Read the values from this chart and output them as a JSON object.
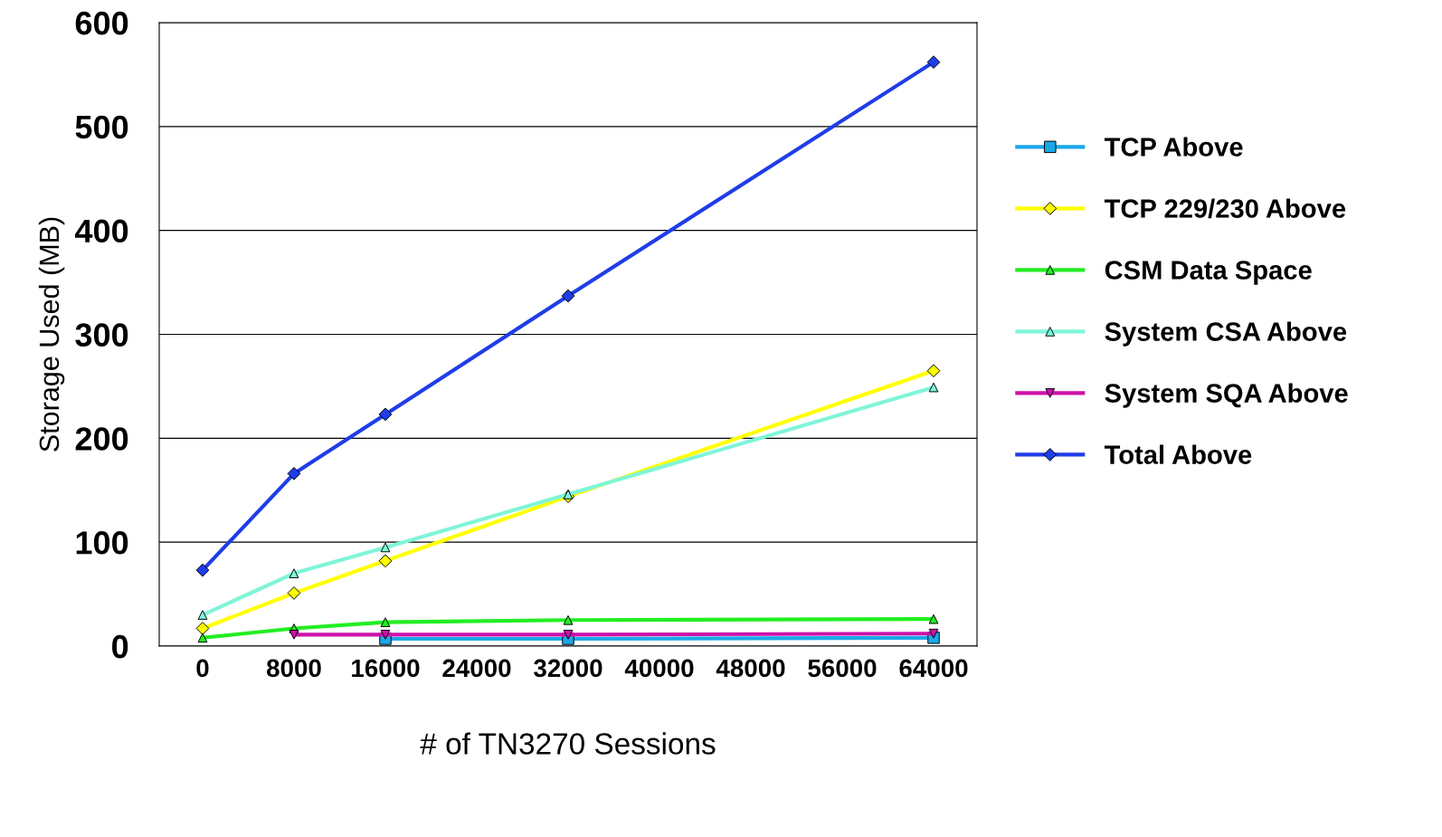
{
  "chart_data": {
    "type": "line",
    "xlabel": "# of TN3270 Sessions",
    "ylabel": "Storage Used (MB)",
    "xlim": [
      -3800,
      67800
    ],
    "xticks": [
      0,
      8000,
      16000,
      24000,
      32000,
      40000,
      48000,
      56000,
      64000
    ],
    "ylim": [
      0,
      600
    ],
    "yticks": [
      0,
      100,
      200,
      300,
      400,
      500,
      600
    ],
    "grid": "y",
    "legend": "right",
    "x": [
      0,
      8000,
      16000,
      32000,
      64000
    ],
    "series": [
      {
        "name": "TCP Above",
        "color": "#1aa8e8",
        "marker": "square",
        "values": [
          null,
          null,
          7,
          7,
          8
        ]
      },
      {
        "name": "TCP 229/230 Above",
        "color": "#ffff00",
        "marker": "diamond",
        "values": [
          17,
          51,
          82,
          144,
          265
        ]
      },
      {
        "name": "CSM Data Space",
        "color": "#22ee22",
        "marker": "triangle",
        "values": [
          8,
          17,
          23,
          25,
          26
        ]
      },
      {
        "name": "System CSA Above",
        "color": "#7ff5d8",
        "marker": "triangle",
        "values": [
          30,
          70,
          95,
          146,
          249
        ]
      },
      {
        "name": "System SQA Above",
        "color": "#cc11aa",
        "marker": "triangle_down",
        "values": [
          null,
          11,
          11,
          11,
          12
        ]
      },
      {
        "name": "Total Above",
        "color": "#1f3de8",
        "marker": "diamond",
        "values": [
          73,
          166,
          223,
          337,
          562
        ]
      }
    ]
  }
}
